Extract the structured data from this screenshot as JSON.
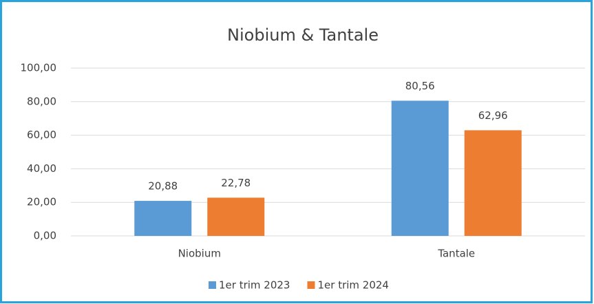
{
  "chart_data": {
    "type": "bar",
    "title": "Niobium & Tantale",
    "categories": [
      "Niobium",
      "Tantale"
    ],
    "series": [
      {
        "name": "1er trim 2023",
        "color": "#5b9bd5",
        "values": [
          20.88,
          80.56
        ],
        "value_labels": [
          "20,88",
          "80,56"
        ]
      },
      {
        "name": "1er trim 2024",
        "color": "#ed7d31",
        "values": [
          22.78,
          62.96
        ],
        "value_labels": [
          "22,78",
          "62,96"
        ]
      }
    ],
    "ylim": [
      0,
      100
    ],
    "yticks": [
      {
        "value": 0,
        "label": "0,00"
      },
      {
        "value": 20,
        "label": "20,00"
      },
      {
        "value": 40,
        "label": "40,00"
      },
      {
        "value": 60,
        "label": "60,00"
      },
      {
        "value": 80,
        "label": "80,00"
      },
      {
        "value": 100,
        "label": "100,00"
      }
    ],
    "grid": true,
    "legend": "bottom"
  }
}
